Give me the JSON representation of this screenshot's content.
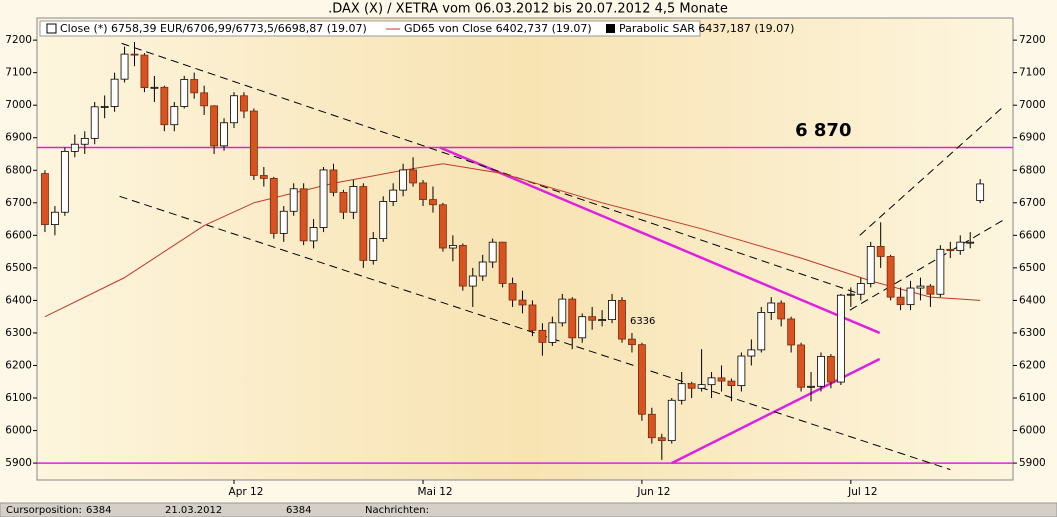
{
  "chart_data": {
    "type": "candlestick",
    "title": ".DAX (X) / XETRA vom 06.03.2012 bis 20.07.2012 4,5 Monate",
    "candle_series": {
      "name": "Close (*) 6758,39 EUR/6706,99/6773,5/6698,87 (19.07)",
      "up_color": "#ffffff",
      "down_color": "#d8531f",
      "ohlc": [
        [
          6790,
          6800,
          6610,
          6633
        ],
        [
          6633,
          6690,
          6600,
          6671
        ],
        [
          6671,
          6870,
          6660,
          6858
        ],
        [
          6858,
          6910,
          6840,
          6880
        ],
        [
          6880,
          6920,
          6850,
          6898
        ],
        [
          6898,
          7010,
          6880,
          6995
        ],
        [
          6995,
          7030,
          6960,
          6996
        ],
        [
          6996,
          7100,
          6980,
          7080
        ],
        [
          7080,
          7180,
          7070,
          7157
        ],
        [
          7157,
          7194,
          7120,
          7154
        ],
        [
          7154,
          7160,
          7040,
          7054
        ],
        [
          7054,
          7090,
          7010,
          7055
        ],
        [
          7055,
          7060,
          6920,
          6940
        ],
        [
          6940,
          7010,
          6920,
          6996
        ],
        [
          6996,
          7090,
          6990,
          7079
        ],
        [
          7079,
          7100,
          7020,
          7038
        ],
        [
          7038,
          7060,
          6970,
          6998
        ],
        [
          6998,
          7000,
          6850,
          6875
        ],
        [
          6875,
          6960,
          6860,
          6946
        ],
        [
          6946,
          7040,
          6930,
          7029
        ],
        [
          7029,
          7040,
          6960,
          6982
        ],
        [
          6982,
          6990,
          6770,
          6784
        ],
        [
          6784,
          6810,
          6750,
          6775
        ],
        [
          6775,
          6780,
          6590,
          6606
        ],
        [
          6606,
          6690,
          6580,
          6674
        ],
        [
          6674,
          6760,
          6660,
          6743
        ],
        [
          6743,
          6760,
          6570,
          6583
        ],
        [
          6583,
          6650,
          6560,
          6624
        ],
        [
          6624,
          6810,
          6610,
          6801
        ],
        [
          6801,
          6820,
          6720,
          6732
        ],
        [
          6732,
          6740,
          6650,
          6671
        ],
        [
          6671,
          6770,
          6650,
          6750
        ],
        [
          6750,
          6760,
          6500,
          6523
        ],
        [
          6523,
          6610,
          6510,
          6590
        ],
        [
          6590,
          6720,
          6580,
          6704
        ],
        [
          6704,
          6760,
          6690,
          6739
        ],
        [
          6739,
          6820,
          6720,
          6801
        ],
        [
          6801,
          6840,
          6750,
          6761
        ],
        [
          6761,
          6770,
          6690,
          6710
        ],
        [
          6710,
          6750,
          6670,
          6694
        ],
        [
          6694,
          6700,
          6550,
          6561
        ],
        [
          6561,
          6600,
          6520,
          6569
        ],
        [
          6569,
          6575,
          6430,
          6444
        ],
        [
          6444,
          6500,
          6380,
          6475
        ],
        [
          6475,
          6540,
          6460,
          6518
        ],
        [
          6518,
          6590,
          6500,
          6579
        ],
        [
          6579,
          6580,
          6440,
          6452
        ],
        [
          6452,
          6470,
          6380,
          6401
        ],
        [
          6401,
          6430,
          6360,
          6386
        ],
        [
          6386,
          6400,
          6290,
          6308
        ],
        [
          6308,
          6330,
          6230,
          6271
        ],
        [
          6271,
          6350,
          6260,
          6331
        ],
        [
          6331,
          6420,
          6320,
          6404
        ],
        [
          6404,
          6410,
          6250,
          6285
        ],
        [
          6285,
          6360,
          6270,
          6350
        ],
        [
          6350,
          6380,
          6310,
          6339
        ],
        [
          6339,
          6370,
          6320,
          6341
        ],
        [
          6341,
          6420,
          6330,
          6400
        ],
        [
          6400,
          6410,
          6270,
          6281
        ],
        [
          6281,
          6300,
          6240,
          6264
        ],
        [
          6264,
          6270,
          6030,
          6050
        ],
        [
          6050,
          6070,
          5960,
          5978
        ],
        [
          5978,
          5990,
          5910,
          5969
        ],
        [
          5969,
          6100,
          5960,
          6093
        ],
        [
          6093,
          6180,
          6080,
          6144
        ],
        [
          6144,
          6150,
          6100,
          6130
        ],
        [
          6130,
          6250,
          6120,
          6141
        ],
        [
          6141,
          6180,
          6100,
          6162
        ],
        [
          6162,
          6200,
          6120,
          6152
        ],
        [
          6152,
          6160,
          6090,
          6138
        ],
        [
          6138,
          6240,
          6120,
          6229
        ],
        [
          6229,
          6280,
          6200,
          6248
        ],
        [
          6248,
          6380,
          6240,
          6363
        ],
        [
          6363,
          6410,
          6340,
          6392
        ],
        [
          6392,
          6400,
          6320,
          6343
        ],
        [
          6343,
          6350,
          6240,
          6263
        ],
        [
          6263,
          6270,
          6120,
          6133
        ],
        [
          6133,
          6180,
          6090,
          6136
        ],
        [
          6136,
          6240,
          6120,
          6228
        ],
        [
          6228,
          6235,
          6130,
          6149
        ],
        [
          6149,
          6420,
          6140,
          6416
        ],
        [
          6416,
          6440,
          6380,
          6419
        ],
        [
          6419,
          6470,
          6400,
          6452
        ],
        [
          6452,
          6580,
          6440,
          6566
        ],
        [
          6566,
          6640,
          6500,
          6535
        ],
        [
          6535,
          6540,
          6400,
          6410
        ],
        [
          6410,
          6440,
          6370,
          6387
        ],
        [
          6387,
          6460,
          6370,
          6438
        ],
        [
          6438,
          6470,
          6400,
          6444
        ],
        [
          6444,
          6450,
          6380,
          6419
        ],
        [
          6419,
          6570,
          6410,
          6557
        ],
        [
          6557,
          6580,
          6530,
          6553
        ],
        [
          6553,
          6600,
          6540,
          6579
        ],
        [
          6579,
          6610,
          6560,
          6579
        ],
        [
          6707,
          6773,
          6699,
          6758
        ]
      ]
    },
    "ma_series": {
      "name": "GD65 von Close 6402,737 (19.07)",
      "color": "#c0392b",
      "x": [
        0,
        8,
        16,
        21,
        29,
        36,
        40,
        46,
        56,
        66,
        76,
        83,
        89,
        94
      ],
      "values": [
        6350,
        6470,
        6630,
        6700,
        6760,
        6800,
        6820,
        6790,
        6700,
        6620,
        6530,
        6460,
        6410,
        6400
      ]
    },
    "sar_series": {
      "name": "Parabolic SAR 6437,187 (19.07)",
      "color": "#000000"
    },
    "xlim": [
      -0.8,
      97.3
    ],
    "ylim": [
      5848,
      7268
    ],
    "yticks": [
      5900,
      6000,
      6100,
      6200,
      6300,
      6400,
      6500,
      6600,
      6700,
      6800,
      6900,
      7000,
      7100,
      7200
    ],
    "xticks": [
      {
        "value": 19,
        "label": "Apr 12"
      },
      {
        "value": 38,
        "label": "Mai 12"
      },
      {
        "value": 60,
        "label": "Jun 12"
      },
      {
        "value": 81,
        "label": "Jul 12"
      }
    ],
    "hlines": [
      {
        "value": 6870,
        "color": "#e020e0"
      },
      {
        "value": 5900,
        "color": "#e020e0"
      }
    ],
    "lines": [
      {
        "x1": 39.7,
        "y1": 6870,
        "x2": 83.9,
        "y2": 6300,
        "color": "#e020e0",
        "dash": false
      },
      {
        "x1": 63,
        "y1": 5900,
        "x2": 83.9,
        "y2": 6220,
        "color": "#e020e0",
        "dash": false
      },
      {
        "x1": 7.7,
        "y1": 7190,
        "x2": 81.9,
        "y2": 6420,
        "color": "#000000",
        "dash": true
      },
      {
        "x1": 7.5,
        "y1": 6720,
        "x2": 91,
        "y2": 5880,
        "color": "#000000",
        "dash": true
      },
      {
        "x1": 81.9,
        "y1": 6600,
        "x2": 96.5,
        "y2": 7000,
        "color": "#000000",
        "dash": true
      },
      {
        "x1": 80.9,
        "y1": 6370,
        "x2": 96.5,
        "y2": 6650,
        "color": "#000000",
        "dash": true
      }
    ],
    "level_label": {
      "text": "6 870",
      "x": 75.4,
      "y": 6920,
      "color": "#e020e0"
    },
    "annotation": {
      "text": "6336",
      "x": 58.8,
      "y": 6336
    }
  },
  "status": {
    "label": "Cursorposition:",
    "value": "6384",
    "date": "21.03.2012",
    "value2": "6384",
    "news": "Nachrichten:"
  }
}
